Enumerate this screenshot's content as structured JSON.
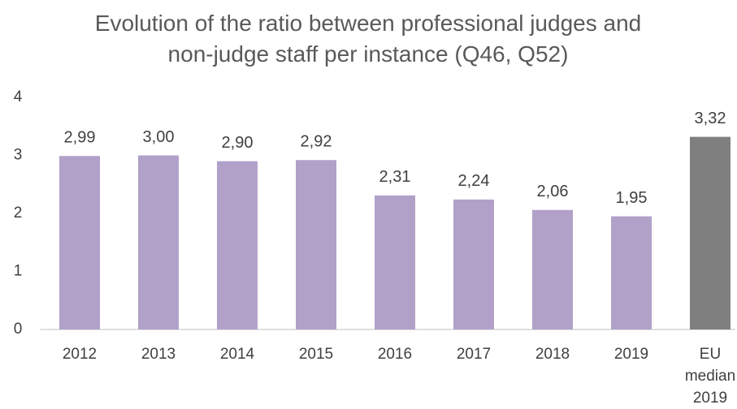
{
  "chart_data": {
    "type": "bar",
    "title": "Evolution of the ratio between professional judges and non-judge staff per instance (Q46, Q52)",
    "categories": [
      "2012",
      "2013",
      "2014",
      "2015",
      "2016",
      "2017",
      "2018",
      "2019",
      "EU median 2019"
    ],
    "values": [
      2.99,
      3.0,
      2.9,
      2.92,
      2.31,
      2.24,
      2.06,
      1.95,
      3.32
    ],
    "value_labels": [
      "2,99",
      "3,00",
      "2,90",
      "2,92",
      "2,31",
      "2,24",
      "2,06",
      "1,95",
      "3,32"
    ],
    "colors": [
      "#b1a1c9",
      "#b1a1c9",
      "#b1a1c9",
      "#b1a1c9",
      "#b1a1c9",
      "#b1a1c9",
      "#b1a1c9",
      "#b1a1c9",
      "#7f7f7f"
    ],
    "ylim": [
      0,
      4
    ],
    "yticks": [
      0,
      1,
      2,
      3,
      4
    ],
    "grid": false
  }
}
